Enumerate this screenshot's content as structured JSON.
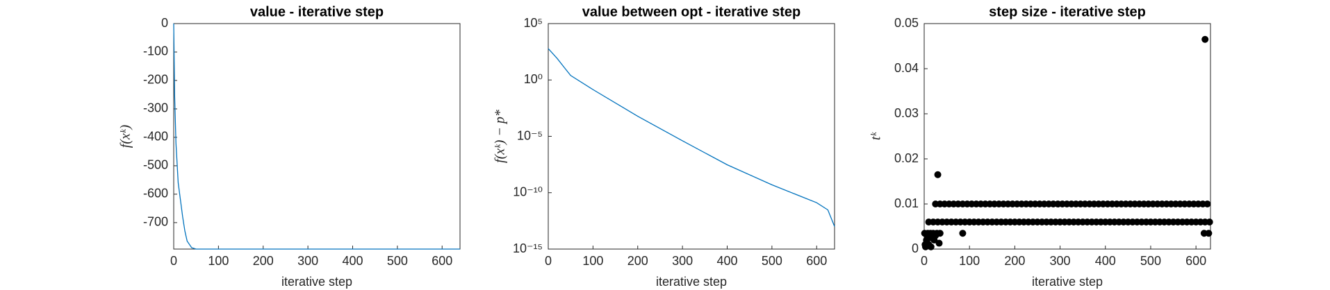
{
  "chart_data": [
    {
      "type": "line",
      "title": "value - iterative step",
      "xlabel": "iterative step",
      "ylabel": "f(xᵏ)",
      "color": "#0072bd",
      "x": [
        0,
        2,
        5,
        10,
        15,
        20,
        25,
        30,
        40,
        50,
        100,
        640
      ],
      "values": [
        0,
        -250,
        -420,
        -560,
        -620,
        -680,
        -730,
        -765,
        -788,
        -793,
        -793,
        -793
      ],
      "xlim": [
        0,
        640
      ],
      "xticks": [
        0,
        100,
        200,
        300,
        400,
        500,
        600
      ],
      "ylim": [
        -793,
        0
      ],
      "yticks": [
        -700,
        -600,
        -500,
        -400,
        -300,
        -200,
        -100,
        0
      ],
      "log": false
    },
    {
      "type": "line",
      "title": "value between opt - iterative step",
      "xlabel": "iterative step",
      "ylabel": "f(xᵏ) − p*",
      "color": "#0072bd",
      "x": [
        0,
        20,
        35,
        50,
        100,
        200,
        300,
        400,
        500,
        600,
        625,
        640
      ],
      "values": [
        600,
        80,
        14,
        2.5,
        0.14,
        0.0006,
        4e-06,
        3e-08,
        5e-10,
        1.3e-11,
        3e-12,
        1e-13
      ],
      "xlim": [
        0,
        640
      ],
      "xticks": [
        0,
        100,
        200,
        300,
        400,
        500,
        600
      ],
      "ylim": [
        1e-15,
        100000
      ],
      "log": true,
      "yticks": [
        {
          "value": 1e-15,
          "label": "10⁻¹⁵"
        },
        {
          "value": 1e-10,
          "label": "10⁻¹⁰"
        },
        {
          "value": 1e-05,
          "label": "10⁻⁵"
        },
        {
          "value": 1,
          "label": "10⁰"
        },
        {
          "value": 100000,
          "label": "10⁵"
        }
      ]
    },
    {
      "type": "scatter",
      "title": "step size - iterative step",
      "xlabel": "iterative step",
      "ylabel": "tᵏ",
      "color": "#000000",
      "x": [
        1,
        2,
        3,
        5,
        7,
        8,
        10,
        12,
        14,
        15,
        17,
        20,
        22,
        25,
        28,
        30,
        33,
        35,
        85,
        620,
        618,
        628,
        10,
        20,
        30,
        40,
        50,
        60,
        70,
        80,
        90,
        100,
        110,
        120,
        130,
        140,
        150,
        160,
        170,
        180,
        190,
        200,
        210,
        220,
        230,
        240,
        250,
        260,
        270,
        280,
        290,
        300,
        310,
        320,
        330,
        340,
        350,
        360,
        370,
        380,
        390,
        400,
        410,
        420,
        430,
        440,
        450,
        460,
        470,
        480,
        490,
        500,
        510,
        520,
        530,
        540,
        550,
        560,
        570,
        580,
        590,
        600,
        610,
        620,
        630,
        25,
        35,
        45,
        55,
        65,
        75,
        85,
        95,
        105,
        115,
        125,
        135,
        145,
        155,
        165,
        175,
        185,
        195,
        205,
        215,
        225,
        235,
        245,
        255,
        265,
        275,
        285,
        295,
        305,
        315,
        325,
        335,
        345,
        355,
        365,
        375,
        385,
        395,
        405,
        415,
        425,
        435,
        445,
        455,
        465,
        475,
        485,
        495,
        505,
        515,
        525,
        535,
        545,
        555,
        565,
        575,
        585,
        595,
        605,
        615,
        625
      ],
      "values": [
        0.0035,
        0.001,
        0.0005,
        0.002,
        0.003,
        0.0035,
        0.001,
        0.0025,
        0.0035,
        0.0005,
        0.0025,
        0.0035,
        0.002,
        0.003,
        0.0035,
        0.0165,
        0.0013,
        0.0035,
        0.0035,
        0.0465,
        0.0035,
        0.0035,
        0.006,
        0.006,
        0.006,
        0.006,
        0.006,
        0.006,
        0.006,
        0.006,
        0.006,
        0.006,
        0.006,
        0.006,
        0.006,
        0.006,
        0.006,
        0.006,
        0.006,
        0.006,
        0.006,
        0.006,
        0.006,
        0.006,
        0.006,
        0.006,
        0.006,
        0.006,
        0.006,
        0.006,
        0.006,
        0.006,
        0.006,
        0.006,
        0.006,
        0.006,
        0.006,
        0.006,
        0.006,
        0.006,
        0.006,
        0.006,
        0.006,
        0.006,
        0.006,
        0.006,
        0.006,
        0.006,
        0.006,
        0.006,
        0.006,
        0.006,
        0.006,
        0.006,
        0.006,
        0.006,
        0.006,
        0.006,
        0.006,
        0.006,
        0.006,
        0.006,
        0.006,
        0.006,
        0.006,
        0.01,
        0.01,
        0.01,
        0.01,
        0.01,
        0.01,
        0.01,
        0.01,
        0.01,
        0.01,
        0.01,
        0.01,
        0.01,
        0.01,
        0.01,
        0.01,
        0.01,
        0.01,
        0.01,
        0.01,
        0.01,
        0.01,
        0.01,
        0.01,
        0.01,
        0.01,
        0.01,
        0.01,
        0.01,
        0.01,
        0.01,
        0.01,
        0.01,
        0.01,
        0.01,
        0.01,
        0.01,
        0.01,
        0.01,
        0.01,
        0.01,
        0.01,
        0.01,
        0.01,
        0.01,
        0.01,
        0.01,
        0.01,
        0.01,
        0.01,
        0.01,
        0.01,
        0.01,
        0.01,
        0.01,
        0.01,
        0.01,
        0.01,
        0.01,
        0.01,
        0.01
      ],
      "xlim": [
        0,
        632
      ],
      "xticks": [
        0,
        100,
        200,
        300,
        400,
        500,
        600
      ],
      "ylim": [
        0,
        0.05
      ],
      "yticks": [
        0,
        0.01,
        0.02,
        0.03,
        0.04,
        0.05
      ],
      "log": false
    }
  ]
}
